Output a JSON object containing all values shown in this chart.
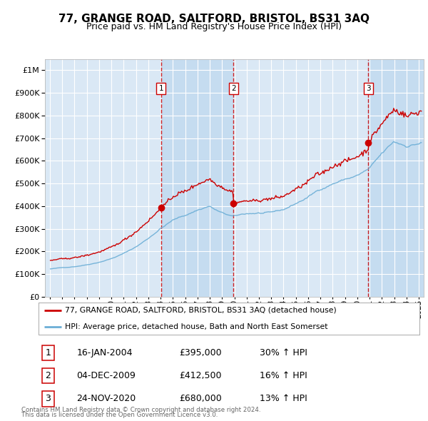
{
  "title": "77, GRANGE ROAD, SALTFORD, BRISTOL, BS31 3AQ",
  "subtitle": "Price paid vs. HM Land Registry's House Price Index (HPI)",
  "legend_line1": "77, GRANGE ROAD, SALTFORD, BRISTOL, BS31 3AQ (detached house)",
  "legend_line2": "HPI: Average price, detached house, Bath and North East Somerset",
  "footer1": "Contains HM Land Registry data © Crown copyright and database right 2024.",
  "footer2": "This data is licensed under the Open Government Licence v3.0.",
  "transactions": [
    {
      "num": 1,
      "date": "16-JAN-2004",
      "price": 395000,
      "hpi_pct": "30% ↑ HPI",
      "year_x": 2004.04
    },
    {
      "num": 2,
      "date": "04-DEC-2009",
      "price": 412500,
      "hpi_pct": "16% ↑ HPI",
      "year_x": 2009.92
    },
    {
      "num": 3,
      "date": "24-NOV-2020",
      "price": 680000,
      "hpi_pct": "13% ↑ HPI",
      "year_x": 2020.9
    }
  ],
  "ylim": [
    0,
    1050000
  ],
  "xlim_start": 1994.6,
  "xlim_end": 2025.4,
  "bg_color": "#DAE8F5",
  "vband_color": "#C5DCF0",
  "grid_color": "#FFFFFF",
  "hpi_line_color": "#6BAED6",
  "price_line_color": "#CC0000",
  "vline_color": "#CC0000",
  "title_fontsize": 11,
  "subtitle_fontsize": 9,
  "tick_fontsize": 7.5,
  "ytick_fontsize": 8
}
